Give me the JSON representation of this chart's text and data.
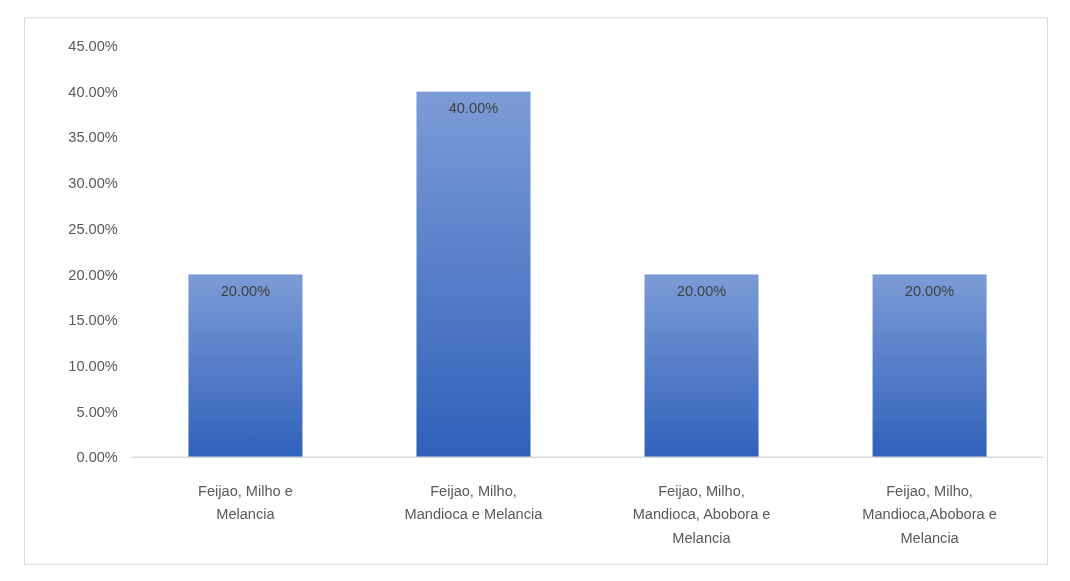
{
  "chart_data": {
    "type": "bar",
    "categories": [
      "Feijao, Milho e Melancia",
      "Feijao, Milho, Mandioca e Melancia",
      "Feijao, Milho, Mandioca, Abobora e Melancia",
      "Feijao, Milho, Mandioca,Abobora e Melancia"
    ],
    "values": [
      20,
      40,
      20,
      20
    ],
    "value_labels": [
      "20.00%",
      "40.00%",
      "20.00%",
      "20.00%"
    ],
    "color": "#4472c4",
    "ylim": [
      0,
      45
    ],
    "yticks": [
      {
        "value": 0,
        "label": "0.00%"
      },
      {
        "value": 5,
        "label": "5.00%"
      },
      {
        "value": 10,
        "label": "10.00%"
      },
      {
        "value": 15,
        "label": "15.00%"
      },
      {
        "value": 20,
        "label": "20.00%"
      },
      {
        "value": 25,
        "label": "25.00%"
      },
      {
        "value": 30,
        "label": "30.00%"
      },
      {
        "value": 35,
        "label": "35.00%"
      },
      {
        "value": 40,
        "label": "40.00%"
      },
      {
        "value": 45,
        "label": "45.00%"
      }
    ],
    "grid": false
  }
}
